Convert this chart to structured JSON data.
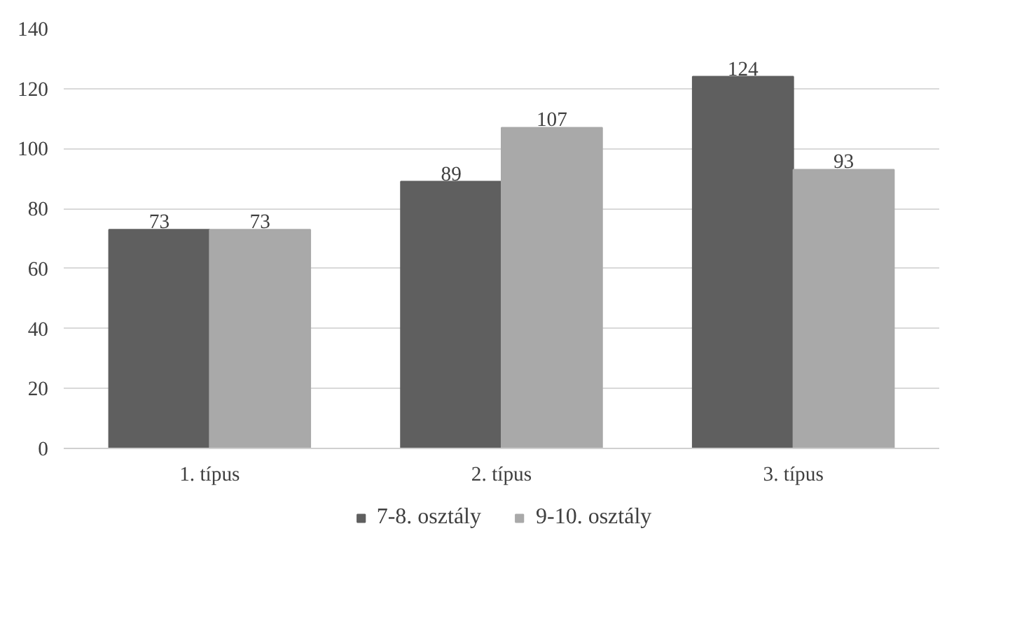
{
  "chart_data": {
    "type": "bar",
    "categories": [
      "1. típus",
      "2. típus",
      "3. típus"
    ],
    "series": [
      {
        "name": "7-8. osztály",
        "color": "#5f5f5f",
        "values": [
          73,
          89,
          124
        ]
      },
      {
        "name": "9-10. osztály",
        "color": "#a9a9a9",
        "values": [
          73,
          107,
          93
        ]
      }
    ],
    "ylim": [
      0,
      140
    ],
    "yticks": [
      0,
      20,
      40,
      60,
      80,
      100,
      120,
      140
    ],
    "grid": "y",
    "legend": "bottom",
    "data_labels": true
  }
}
